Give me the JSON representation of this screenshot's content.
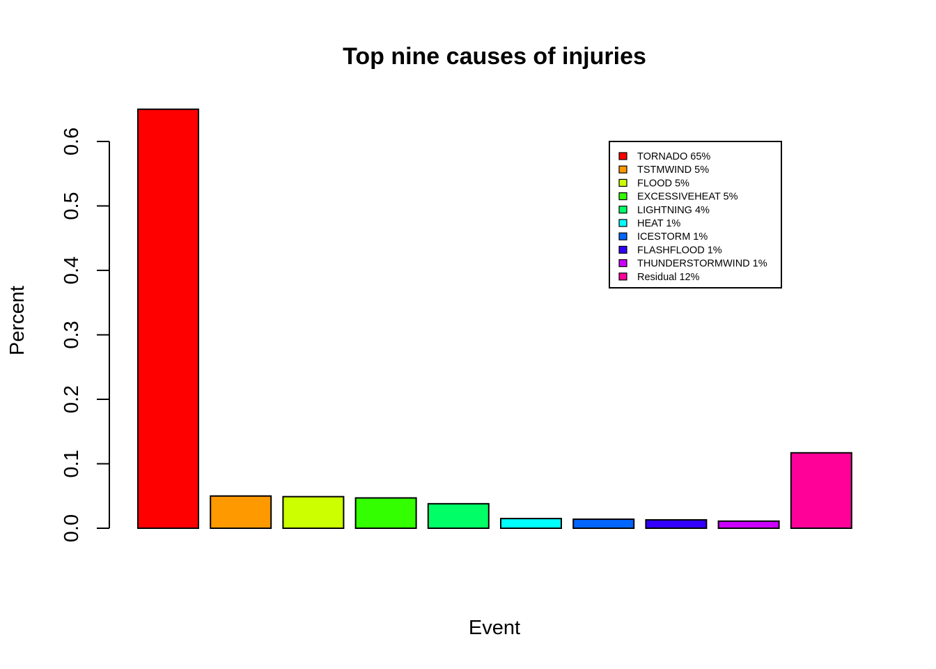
{
  "chart_data": {
    "type": "bar",
    "title": "Top nine causes of injuries",
    "xlabel": "Event",
    "ylabel": "Percent",
    "ylim": [
      0,
      0.65
    ],
    "yticks": [
      0.0,
      0.1,
      0.2,
      0.3,
      0.4,
      0.5,
      0.6
    ],
    "ytick_labels": [
      "0.0",
      "0.1",
      "0.2",
      "0.3",
      "0.4",
      "0.5",
      "0.6"
    ],
    "grid": false,
    "legend_position": "top-right",
    "categories": [
      "TORNADO",
      "TSTMWIND",
      "FLOOD",
      "EXCESSIVEHEAT",
      "LIGHTNING",
      "HEAT",
      "ICESTORM",
      "FLASHFLOOD",
      "THUNDERSTORMWIND",
      "Residual"
    ],
    "values": [
      0.65,
      0.05,
      0.049,
      0.047,
      0.038,
      0.015,
      0.014,
      0.013,
      0.011,
      0.117
    ],
    "colors": [
      "#FF0000",
      "#FF9900",
      "#CCFF00",
      "#33FF00",
      "#00FF66",
      "#00FFFF",
      "#0066FF",
      "#3300FF",
      "#CC00FF",
      "#FF0099"
    ],
    "legend": [
      "TORNADO 65%",
      "TSTMWIND 5%",
      "FLOOD 5%",
      "EXCESSIVEHEAT 5%",
      "LIGHTNING 4%",
      "HEAT 1%",
      "ICESTORM 1%",
      "FLASHFLOOD 1%",
      "THUNDERSTORMWIND 1%",
      "Residual 12%"
    ]
  }
}
